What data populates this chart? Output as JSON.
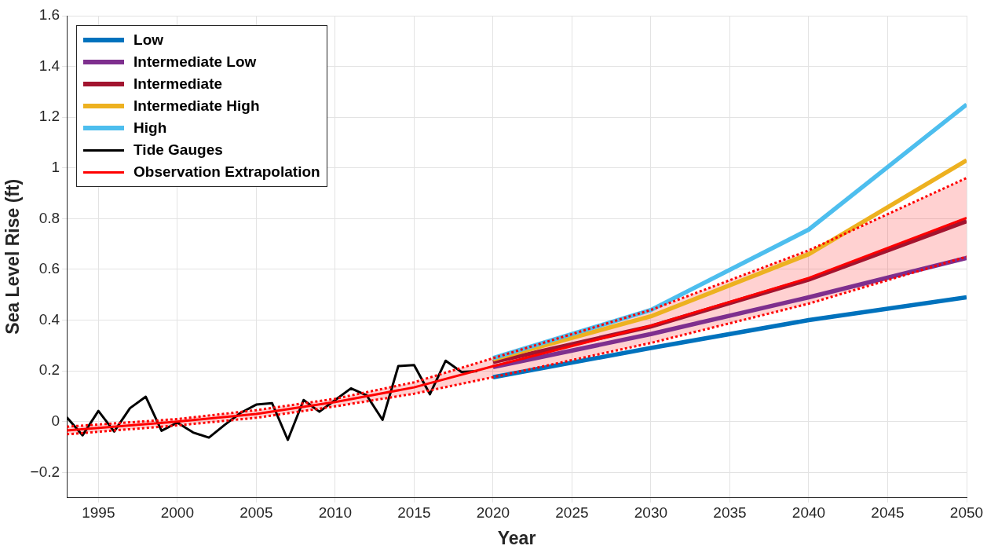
{
  "chart_data": {
    "type": "line",
    "xlabel": "Year",
    "ylabel": "Sea Level Rise (ft)",
    "xlim": [
      1993,
      2050
    ],
    "xticks": [
      1995,
      2000,
      2005,
      2010,
      2015,
      2020,
      2025,
      2030,
      2035,
      2040,
      2045,
      2050
    ],
    "ylim": [
      -0.3,
      1.6
    ],
    "yticks": [
      {
        "value": -0.2,
        "label": "−0.2"
      },
      0,
      0.2,
      0.4,
      0.6,
      0.8,
      1,
      1.2,
      1.4,
      1.6
    ],
    "grid": true,
    "legend": "top left",
    "marker": "none",
    "line_style": "solid",
    "series": [
      {
        "name": "Low",
        "color": "#0072bd",
        "x": [
          2020,
          2030,
          2040,
          2050
        ],
        "values": [
          0.175,
          0.29,
          0.4,
          0.49
        ]
      },
      {
        "name": "Intermediate Low",
        "color": "#7e2f8e",
        "x": [
          2020,
          2030,
          2040,
          2050
        ],
        "values": [
          0.215,
          0.345,
          0.49,
          0.645
        ]
      },
      {
        "name": "Intermediate",
        "color": "#a2142f",
        "x": [
          2020,
          2030,
          2040,
          2050
        ],
        "values": [
          0.235,
          0.375,
          0.56,
          0.79
        ]
      },
      {
        "name": "Intermediate High",
        "color": "#edb120",
        "x": [
          2020,
          2030,
          2040,
          2050
        ],
        "values": [
          0.245,
          0.415,
          0.66,
          1.03
        ]
      },
      {
        "name": "High",
        "color": "#4dbeee",
        "x": [
          2020,
          2030,
          2040,
          2050
        ],
        "values": [
          0.25,
          0.44,
          0.757,
          1.25
        ]
      },
      {
        "name": "Tide Gauges",
        "color": "#000000",
        "x": [
          1993,
          1994,
          1995,
          1996,
          1997,
          1998,
          1999,
          2000,
          2001,
          2002,
          2003,
          2004,
          2005,
          2006,
          2007,
          2008,
          2009,
          2010,
          2011,
          2012,
          2013,
          2014,
          2015,
          2016,
          2017,
          2018,
          2019
        ],
        "values": [
          0.017,
          -0.054,
          0.042,
          -0.039,
          0.053,
          0.098,
          -0.036,
          -0.004,
          -0.043,
          -0.063,
          -0.013,
          0.034,
          0.067,
          0.073,
          -0.072,
          0.085,
          0.039,
          0.085,
          0.131,
          0.103,
          0.007,
          0.219,
          0.223,
          0.108,
          0.24,
          0.196,
          0.199
        ]
      },
      {
        "name": "Observation Extrapolation",
        "color": "#ff0000",
        "x": [
          1993,
          2000,
          2005,
          2010,
          2015,
          2020,
          2030,
          2040,
          2050
        ],
        "values": [
          -0.035,
          0.0,
          0.03,
          0.077,
          0.135,
          0.218,
          0.378,
          0.566,
          0.803
        ],
        "lower": [
          -0.05,
          -0.015,
          0.015,
          0.06,
          0.11,
          0.175,
          0.31,
          0.465,
          0.65
        ],
        "upper": [
          -0.02,
          0.01,
          0.045,
          0.09,
          0.155,
          0.25,
          0.44,
          0.675,
          0.96
        ]
      },
      {
        "color": "#ff0000",
        "line_style": "dotted",
        "x": [
          1993,
          2000,
          2005,
          2010,
          2015,
          2020,
          2030,
          2040,
          2050
        ],
        "values": [
          -0.05,
          -0.015,
          0.015,
          0.06,
          0.11,
          0.175,
          0.31,
          0.465,
          0.65
        ]
      },
      {
        "color": "#ff0000",
        "line_style": "dotted",
        "x": [
          1993,
          2000,
          2005,
          2010,
          2015,
          2020,
          2030,
          2040,
          2050
        ],
        "values": [
          -0.02,
          0.01,
          0.045,
          0.09,
          0.155,
          0.25,
          0.44,
          0.675,
          0.96
        ]
      }
    ]
  }
}
